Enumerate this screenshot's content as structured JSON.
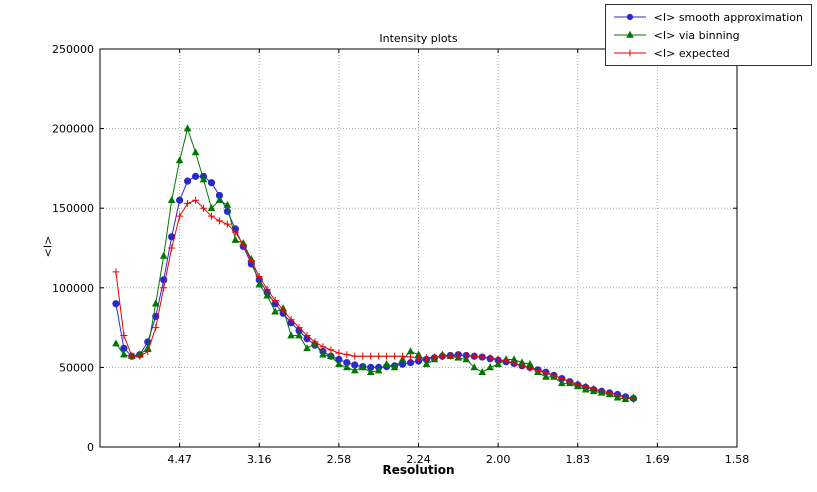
{
  "chart_data": {
    "type": "line",
    "title": "Intensity plots",
    "xlabel": "Resolution",
    "ylabel": "<I>",
    "grid": true,
    "legend_position": "top-right",
    "x_axis": {
      "lim": [
        0.0,
        0.4
      ],
      "tick_positions": [
        0.05,
        0.1,
        0.15,
        0.2,
        0.25,
        0.3,
        0.35,
        0.4
      ],
      "tick_labels": [
        "4.47",
        "3.16",
        "2.58",
        "2.24",
        "2.00",
        "1.83",
        "1.69",
        "1.58"
      ]
    },
    "y_axis": {
      "lim": [
        0,
        250000
      ],
      "tick_positions": [
        0,
        50000,
        100000,
        150000,
        200000,
        250000
      ],
      "tick_labels": [
        "0",
        "50000",
        "100000",
        "150000",
        "200000",
        "250000"
      ]
    },
    "x": [
      0.01,
      0.015,
      0.02,
      0.025,
      0.03,
      0.035,
      0.04,
      0.045,
      0.05,
      0.055,
      0.06,
      0.065,
      0.07,
      0.075,
      0.08,
      0.085,
      0.09,
      0.095,
      0.1,
      0.105,
      0.11,
      0.115,
      0.12,
      0.125,
      0.13,
      0.135,
      0.14,
      0.145,
      0.15,
      0.155,
      0.16,
      0.165,
      0.17,
      0.175,
      0.18,
      0.185,
      0.19,
      0.195,
      0.2,
      0.205,
      0.21,
      0.215,
      0.22,
      0.225,
      0.23,
      0.235,
      0.24,
      0.245,
      0.25,
      0.255,
      0.26,
      0.265,
      0.27,
      0.275,
      0.28,
      0.285,
      0.29,
      0.295,
      0.3,
      0.305,
      0.31,
      0.315,
      0.32,
      0.325,
      0.33,
      0.335
    ],
    "series": [
      {
        "name": "<I> smooth approximation",
        "color": "#2a2acc",
        "marker": "circle",
        "values": [
          90000,
          62000,
          57000,
          58000,
          66000,
          82000,
          105000,
          132000,
          155000,
          167000,
          170000,
          170000,
          166000,
          158000,
          148000,
          137000,
          126000,
          115000,
          105000,
          97000,
          90000,
          84000,
          78000,
          73000,
          68000,
          64000,
          60000,
          57000,
          55000,
          53000,
          51500,
          50500,
          50000,
          50000,
          50500,
          51000,
          52000,
          53000,
          54000,
          55000,
          56000,
          57000,
          57500,
          58000,
          57500,
          57000,
          56500,
          55500,
          54500,
          53500,
          52500,
          51000,
          50000,
          48500,
          47000,
          45000,
          43000,
          41000,
          39000,
          37500,
          36000,
          35000,
          34000,
          33000,
          31500,
          30500
        ]
      },
      {
        "name": "<I> via binning",
        "color": "#007700",
        "marker": "triangle",
        "values": [
          65000,
          58000,
          57000,
          58000,
          62000,
          90000,
          120000,
          155000,
          180000,
          200000,
          185000,
          168000,
          150000,
          155000,
          152000,
          130000,
          128000,
          118000,
          102000,
          95000,
          85000,
          87000,
          70000,
          70000,
          62000,
          65000,
          58000,
          57000,
          52000,
          50000,
          48000,
          50000,
          47000,
          48000,
          52000,
          50000,
          55000,
          60000,
          58000,
          52000,
          55000,
          58000,
          57000,
          56000,
          55000,
          50000,
          47000,
          50000,
          52000,
          55000,
          55000,
          53000,
          52000,
          47000,
          44000,
          44000,
          40000,
          40000,
          38000,
          36000,
          35000,
          34000,
          33000,
          31000,
          30000,
          31000
        ]
      },
      {
        "name": "<I> expected",
        "color": "#ee0000",
        "marker": "plus",
        "values": [
          110000,
          70000,
          57000,
          57000,
          60000,
          75000,
          100000,
          125000,
          145000,
          153000,
          155000,
          150000,
          145000,
          142000,
          140000,
          135000,
          127000,
          117000,
          107000,
          99000,
          92000,
          86000,
          80000,
          75000,
          70000,
          66000,
          63000,
          61000,
          59000,
          58000,
          57000,
          57000,
          57000,
          57000,
          57000,
          57000,
          57000,
          56500,
          56000,
          56000,
          56500,
          57000,
          57000,
          57500,
          57500,
          57000,
          56500,
          56000,
          55000,
          54000,
          52500,
          51000,
          49500,
          48000,
          46500,
          45000,
          43000,
          41000,
          39500,
          38000,
          36500,
          35000,
          34000,
          32500,
          31000,
          30000
        ]
      }
    ]
  }
}
